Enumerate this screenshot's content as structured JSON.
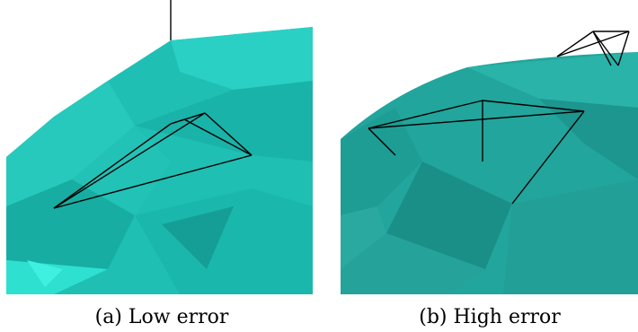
{
  "figure": {
    "panels": [
      {
        "caption": "(a) Low error"
      },
      {
        "caption": "(b) High error"
      }
    ]
  }
}
